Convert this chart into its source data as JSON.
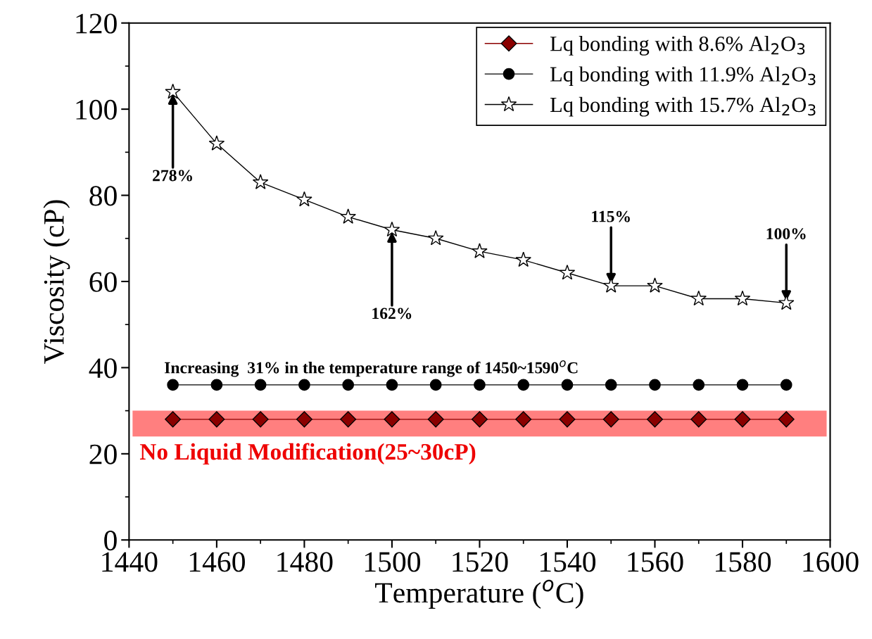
{
  "chart_data": {
    "type": "line",
    "xlabel": "Temperature ($^{o}$C)",
    "ylabel": "Viscosity (cP)",
    "x": [
      1450,
      1460,
      1470,
      1480,
      1490,
      1500,
      1510,
      1520,
      1530,
      1540,
      1550,
      1560,
      1570,
      1580,
      1590
    ],
    "series": [
      {
        "name": "Lq bonding with 8.6% Al$_{2}$O$_{3}$",
        "color": "#8b0000",
        "marker": "diamond",
        "values": [
          28,
          28,
          28,
          28,
          28,
          28,
          28,
          28,
          28,
          28,
          28,
          28,
          28,
          28,
          28
        ]
      },
      {
        "name": "Lq bonding with 11.9% Al$_{2}$O$_{3}$",
        "color": "#000000",
        "marker": "circle",
        "values": [
          36,
          36,
          36,
          36,
          36,
          36,
          36,
          36,
          36,
          36,
          36,
          36,
          36,
          36,
          36
        ]
      },
      {
        "name": "Lq bonding with 15.7% Al$_{2}$O$_{3}$",
        "color": "#000000",
        "marker": "star",
        "values": [
          104,
          92,
          83,
          79,
          75,
          72,
          70,
          67,
          65,
          62,
          59,
          59,
          56,
          56,
          55
        ]
      }
    ],
    "xlim": [
      1440,
      1600
    ],
    "xticks": [
      1440,
      1460,
      1480,
      1500,
      1520,
      1540,
      1560,
      1580,
      1600
    ],
    "ylim": [
      0,
      120
    ],
    "yticks": [
      0,
      20,
      40,
      60,
      80,
      100,
      120
    ],
    "bands": [
      {
        "axis": "y",
        "from": 24,
        "to": 30,
        "label": "No Liquid Modification(25~30cP)",
        "color": "#ff7f7f"
      }
    ],
    "annotations": [
      {
        "text": "278%",
        "x": 1450,
        "y": 104
      },
      {
        "text": "162%",
        "x": 1500,
        "y": 72
      },
      {
        "text": "115%",
        "x": 1550,
        "y": 59
      },
      {
        "text": "100%",
        "x": 1590,
        "y": 55
      },
      "Increasing  31% in the temperature range of 1450~1590$^{o}$C"
    ],
    "grid": false,
    "legend": "top right",
    "line_style": "solid"
  }
}
